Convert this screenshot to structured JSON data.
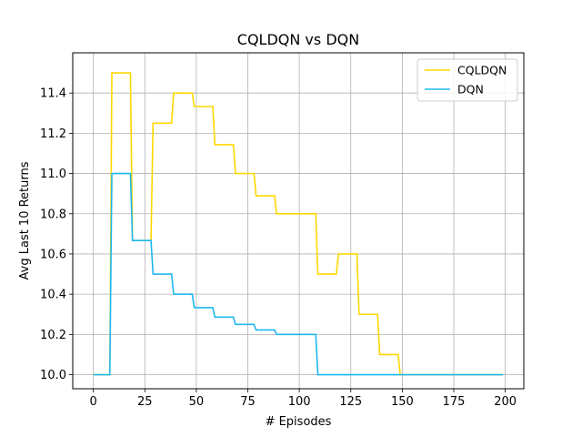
{
  "chart_data": {
    "type": "line",
    "title": "CQLDQN vs DQN",
    "xlabel": "# Episodes",
    "ylabel": "Avg Last 10 Returns",
    "xlim": [
      -10,
      209
    ],
    "ylim": [
      9.93,
      11.6
    ],
    "xticks": [
      0,
      25,
      50,
      75,
      100,
      125,
      150,
      175,
      200
    ],
    "yticks": [
      10.0,
      10.2,
      10.4,
      10.6,
      10.8,
      11.0,
      11.2,
      11.4
    ],
    "xtick_labels": [
      "0",
      "25",
      "50",
      "75",
      "100",
      "125",
      "150",
      "175",
      "200"
    ],
    "ytick_labels": [
      "10.0",
      "10.2",
      "10.4",
      "10.6",
      "10.8",
      "11.0",
      "11.2",
      "11.4"
    ],
    "grid": true,
    "legend_position": "top-right",
    "series": [
      {
        "name": "CQLDQN",
        "color": "#FFD700",
        "points": [
          [
            0,
            10.0
          ],
          [
            8,
            10.0
          ],
          [
            9,
            11.5
          ],
          [
            18,
            11.5
          ],
          [
            19,
            10.667
          ],
          [
            28,
            10.667
          ],
          [
            29,
            11.25
          ],
          [
            38,
            11.25
          ],
          [
            39,
            11.4
          ],
          [
            48,
            11.4
          ],
          [
            49,
            11.333
          ],
          [
            58,
            11.333
          ],
          [
            59,
            11.143
          ],
          [
            68,
            11.143
          ],
          [
            69,
            11.0
          ],
          [
            78,
            11.0
          ],
          [
            79,
            10.889
          ],
          [
            88,
            10.889
          ],
          [
            89,
            10.8
          ],
          [
            108,
            10.8
          ],
          [
            109,
            10.5
          ],
          [
            118,
            10.5
          ],
          [
            119,
            10.6
          ],
          [
            128,
            10.6
          ],
          [
            129,
            10.3
          ],
          [
            138,
            10.3
          ],
          [
            139,
            10.1
          ],
          [
            148,
            10.1
          ],
          [
            149,
            10.0
          ],
          [
            199,
            10.0
          ]
        ]
      },
      {
        "name": "DQN",
        "color": "#1EB8F0",
        "points": [
          [
            0,
            10.0
          ],
          [
            8,
            10.0
          ],
          [
            9,
            11.0
          ],
          [
            18,
            11.0
          ],
          [
            19,
            10.667
          ],
          [
            28,
            10.667
          ],
          [
            29,
            10.5
          ],
          [
            38,
            10.5
          ],
          [
            39,
            10.4
          ],
          [
            48,
            10.4
          ],
          [
            49,
            10.333
          ],
          [
            58,
            10.333
          ],
          [
            59,
            10.286
          ],
          [
            68,
            10.286
          ],
          [
            69,
            10.25
          ],
          [
            78,
            10.25
          ],
          [
            79,
            10.222
          ],
          [
            88,
            10.222
          ],
          [
            89,
            10.2
          ],
          [
            108,
            10.2
          ],
          [
            109,
            10.0
          ],
          [
            199,
            10.0
          ]
        ]
      }
    ]
  }
}
